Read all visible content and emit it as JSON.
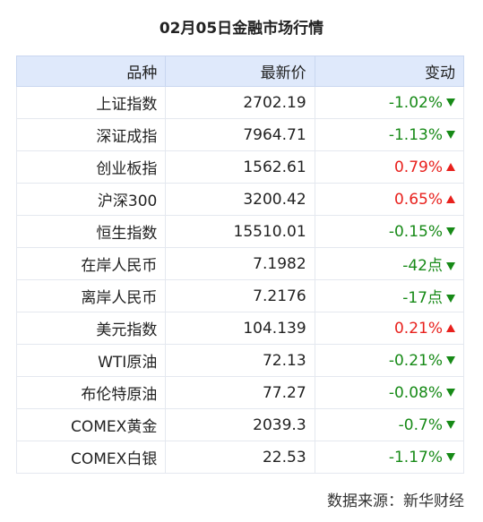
{
  "header": {
    "title": "02月05日金融市场行情"
  },
  "table": {
    "columns": [
      "品种",
      "最新价",
      "变动"
    ],
    "rows": [
      [
        "上证指数",
        "2702.19",
        "-1.02%"
      ],
      [
        "深证成指",
        "7964.71",
        "-1.13%"
      ],
      [
        "创业板指",
        "1562.61",
        "0.79%"
      ],
      [
        "沪深300",
        "3200.42",
        "0.65%"
      ],
      [
        "恒生指数",
        "15510.01",
        "-0.15%"
      ],
      [
        "在岸人民币",
        "7.1982",
        "-42点"
      ],
      [
        "离岸人民币",
        "7.2176",
        "-17点"
      ],
      [
        "美元指数",
        "104.139",
        "0.21%"
      ],
      [
        "WTI原油",
        "72.13",
        "-0.21%"
      ],
      [
        "布伦特原油",
        "77.27",
        "-0.08%"
      ],
      [
        "COMEX黄金",
        "2039.3",
        "-0.7%"
      ],
      [
        "COMEX白银",
        "22.53",
        "-1.17%"
      ]
    ],
    "colors": {
      "up": "#e8211d",
      "down": "#178a17"
    }
  },
  "footer": {
    "source": "数据来源：新华财经"
  }
}
